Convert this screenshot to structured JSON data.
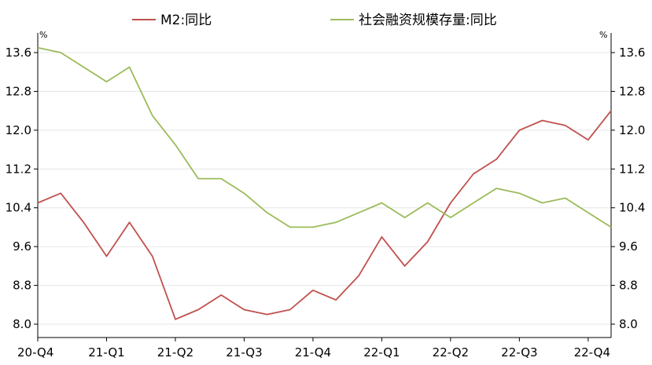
{
  "chart_data": {
    "type": "line",
    "title": "",
    "xlabel": "",
    "ylabel": "",
    "y_unit_left": "%",
    "y_unit_right": "%",
    "ylim": [
      8.0,
      13.6
    ],
    "yticks": [
      8.0,
      8.8,
      9.6,
      10.4,
      11.2,
      12.0,
      12.8,
      13.6
    ],
    "yticks_labels": [
      "8.0",
      "8.8",
      "9.6",
      "10.4",
      "11.2",
      "12.0",
      "12.8",
      "13.6"
    ],
    "x_tick_labels": [
      "20-Q4",
      "21-Q1",
      "21-Q2",
      "21-Q3",
      "21-Q4",
      "22-Q1",
      "22-Q2",
      "22-Q3",
      "22-Q4"
    ],
    "x_tick_positions": [
      0,
      3,
      6,
      9,
      12,
      15,
      18,
      21,
      24
    ],
    "x": [
      "2020-12",
      "2021-01",
      "2021-02",
      "2021-03",
      "2021-04",
      "2021-05",
      "2021-06",
      "2021-07",
      "2021-08",
      "2021-09",
      "2021-10",
      "2021-11",
      "2021-12",
      "2022-01",
      "2022-02",
      "2022-03",
      "2022-04",
      "2022-05",
      "2022-06",
      "2022-07",
      "2022-08",
      "2022-09",
      "2022-10",
      "2022-11",
      "2022-12",
      "2023-01"
    ],
    "grid": true,
    "legend_position": "top",
    "series": [
      {
        "name": "M2:同比",
        "color": "#c0504d",
        "values": [
          10.5,
          10.7,
          10.1,
          9.4,
          10.1,
          9.4,
          8.1,
          8.3,
          8.6,
          8.3,
          8.2,
          8.3,
          8.7,
          8.5,
          9.0,
          9.8,
          9.2,
          9.7,
          10.5,
          11.1,
          11.4,
          12.0,
          12.2,
          12.1,
          11.8,
          12.4
        ]
      },
      {
        "name": "社会融资规模存量:同比",
        "color": "#9bbb59",
        "values": [
          13.7,
          13.6,
          13.3,
          13.0,
          13.3,
          12.3,
          11.7,
          11.0,
          11.0,
          10.7,
          10.3,
          10.0,
          10.0,
          10.1,
          10.3,
          10.5,
          10.2,
          10.5,
          10.2,
          10.5,
          10.8,
          10.7,
          10.5,
          10.6,
          10.3,
          10.0
        ]
      }
    ]
  }
}
